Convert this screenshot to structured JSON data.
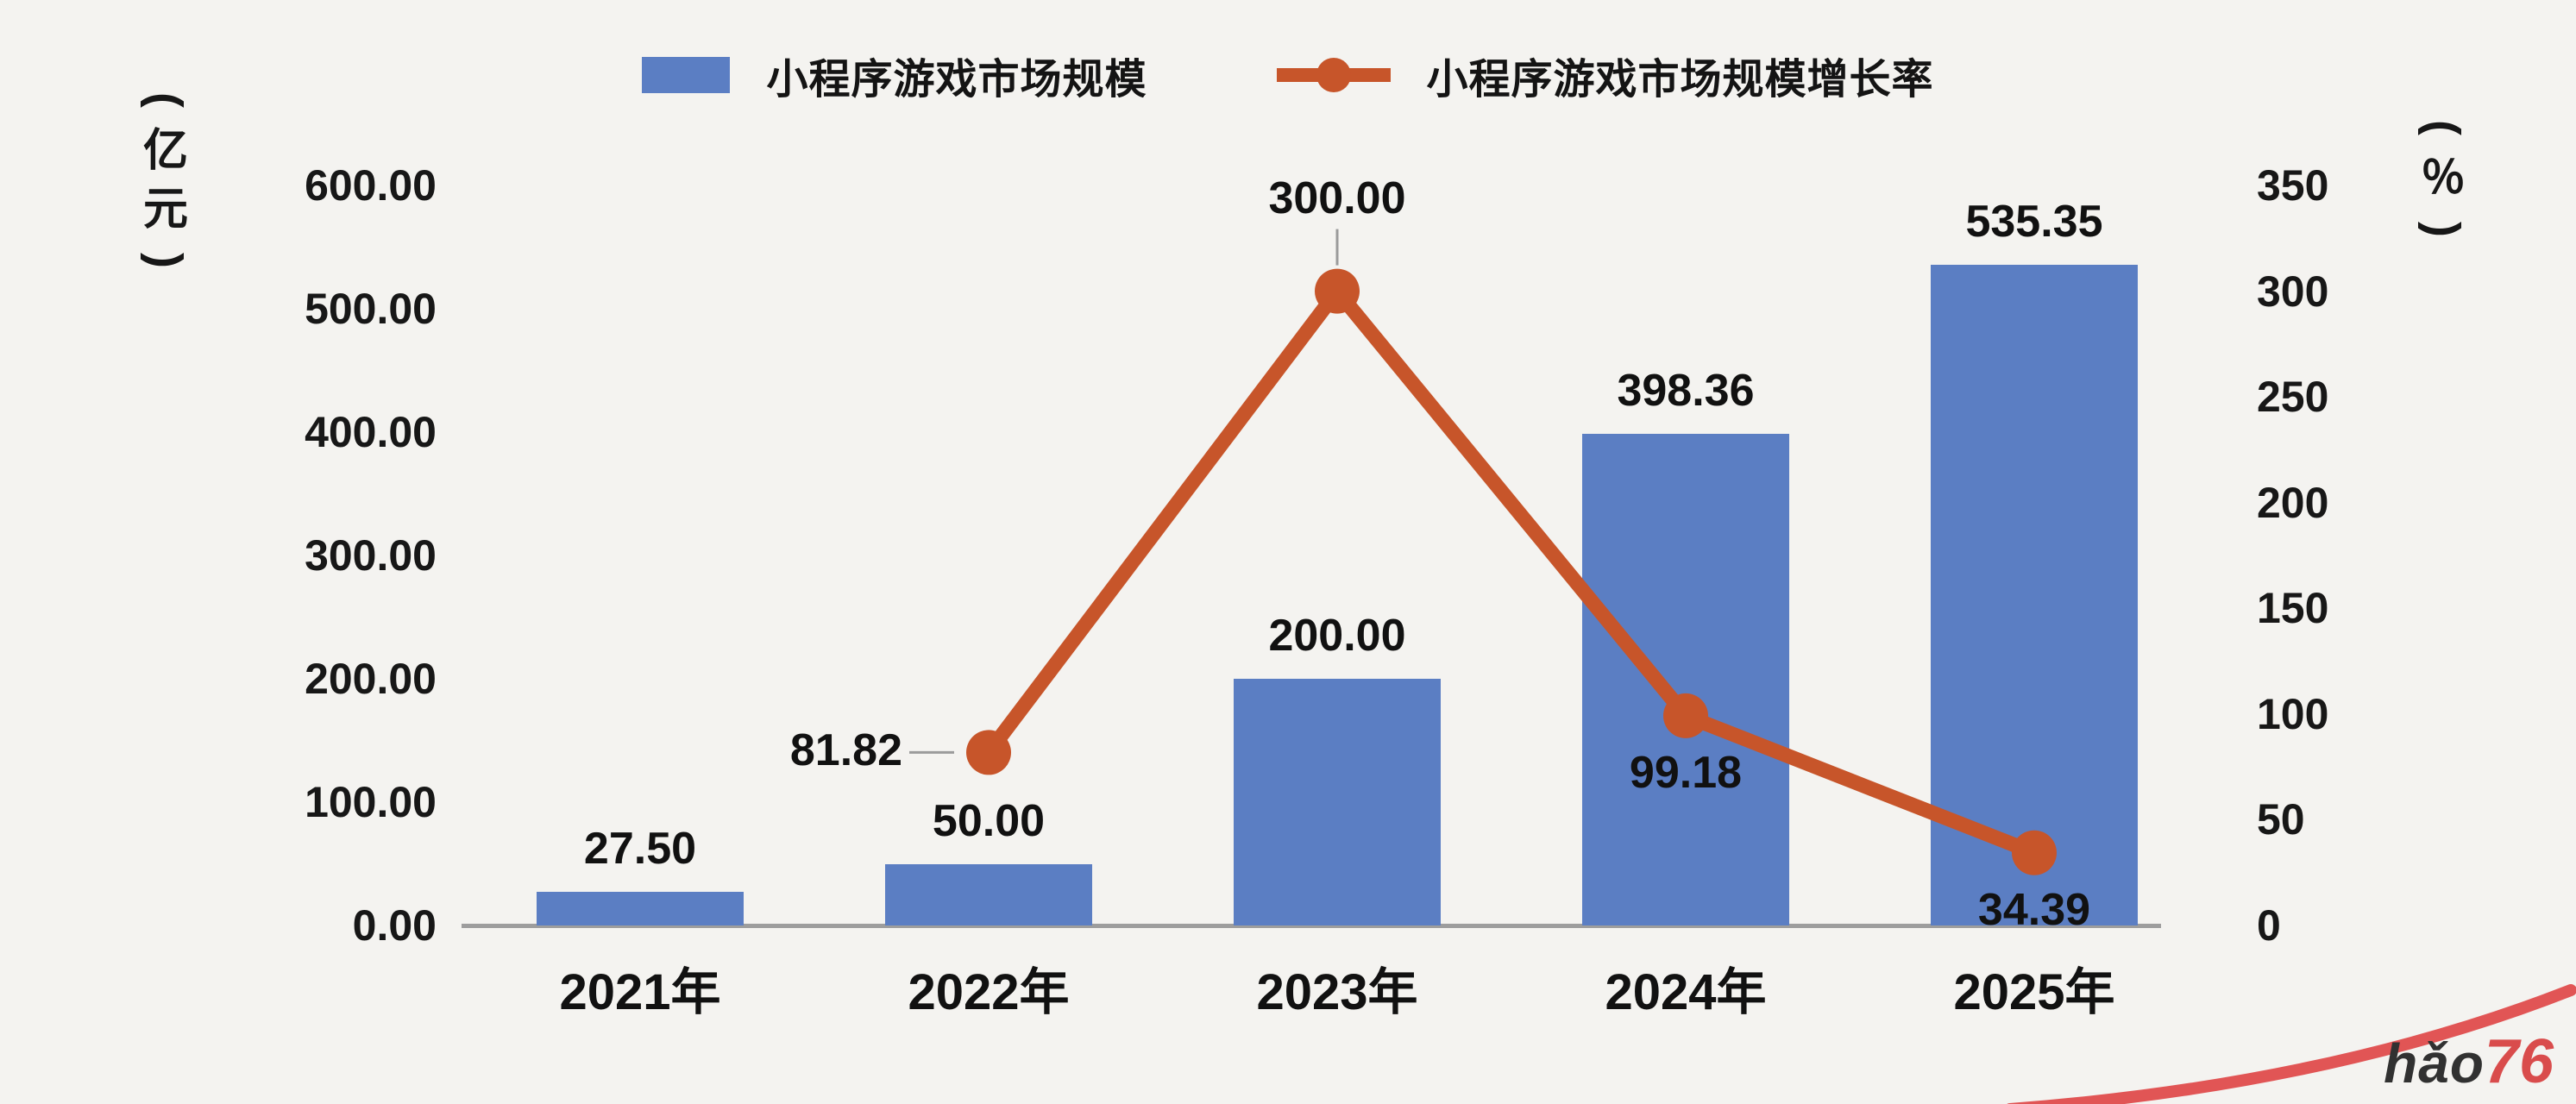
{
  "canvas": {
    "background": "#f4f3f0"
  },
  "legend": {
    "items": [
      {
        "label": "小程序游戏市场规模",
        "marker": "bar-swatch",
        "color": "#5b7ec3"
      },
      {
        "label": "小程序游戏市场规模增长率",
        "marker": "line-dot",
        "color": "#c7552a"
      }
    ]
  },
  "axes": {
    "left": {
      "title": "（亿元）",
      "tick_labels": [
        "600.00",
        "500.00",
        "400.00",
        "300.00",
        "200.00",
        "100.00",
        "0.00"
      ],
      "tick_values": [
        600,
        500,
        400,
        300,
        200,
        100,
        0
      ]
    },
    "right": {
      "title": "（％）",
      "tick_labels": [
        "350",
        "300",
        "250",
        "200",
        "150",
        "100",
        "50",
        "0"
      ],
      "tick_values": [
        350,
        300,
        250,
        200,
        150,
        100,
        50,
        0
      ]
    }
  },
  "chart_data": {
    "type": "bar+line combo",
    "categories": [
      "2021年",
      "2022年",
      "2023年",
      "2024年",
      "2025年"
    ],
    "series": [
      {
        "name": "小程序游戏市场规模",
        "type": "bar",
        "axis": "left",
        "unit": "亿元",
        "color": "#5b7ec3",
        "values": [
          27.5,
          50.0,
          200.0,
          398.36,
          535.35
        ],
        "labels": [
          "27.50",
          "50.00",
          "200.00",
          "398.36",
          "535.35"
        ]
      },
      {
        "name": "小程序游戏市场规模增长率",
        "type": "line",
        "axis": "right",
        "unit": "%",
        "color": "#c7552a",
        "values": [
          null,
          81.82,
          300.0,
          99.18,
          34.39
        ],
        "labels": [
          null,
          "81.82",
          "300.00",
          "99.18",
          "34.39"
        ],
        "label_anchors": [
          null,
          "left",
          "above",
          "below",
          "below"
        ]
      }
    ],
    "ylim_left": [
      0,
      600
    ],
    "ylim_right": [
      0,
      350
    ],
    "legend_position": "top",
    "grid": false,
    "line_stroke_width": 17,
    "point_radius": 26,
    "leader_line_color": "#9b9b9b"
  },
  "watermark": {
    "text_dark": "hǎo",
    "text_red": "76",
    "accent_color": "#d94c4c",
    "swoosh_color": "#e15555"
  }
}
